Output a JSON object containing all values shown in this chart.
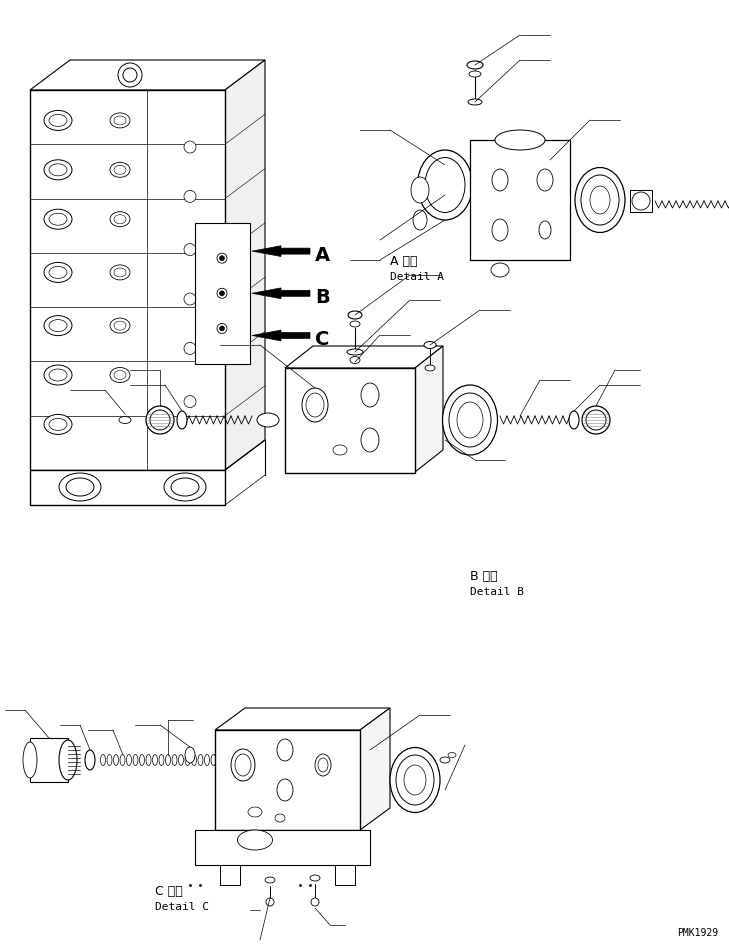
{
  "bg_color": "#ffffff",
  "line_color": "#000000",
  "fig_width": 7.29,
  "fig_height": 9.5,
  "dpi": 100,
  "watermark": "PMK1929",
  "label_A_jp": "A 詳細",
  "label_A_en": "Detail A",
  "label_B_jp": "B 詳細",
  "label_B_en": "Detail B",
  "label_C_jp": "C 詳細",
  "label_C_en": "Detail C",
  "arrow_A": "A",
  "arrow_B": "B",
  "arrow_C": "C"
}
